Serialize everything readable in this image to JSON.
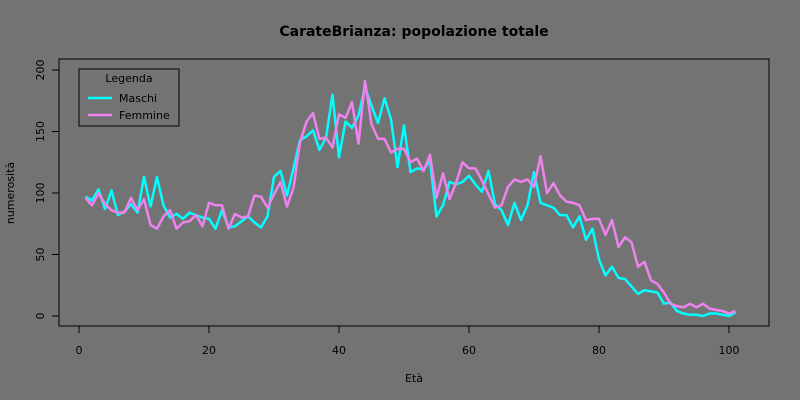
{
  "chart_data": {
    "type": "line",
    "title": "CarateBrianza: popolazione totale",
    "xlabel": "Età",
    "ylabel": "numerosità",
    "xlim": [
      0,
      101
    ],
    "ylim": [
      0,
      200
    ],
    "x_ticks": [
      0,
      20,
      40,
      60,
      80,
      100
    ],
    "y_ticks": [
      0,
      50,
      100,
      150,
      200
    ],
    "grid": false,
    "legend": {
      "title": "Legenda",
      "position": "top-left"
    },
    "x": [
      1,
      2,
      3,
      4,
      5,
      6,
      7,
      8,
      9,
      10,
      11,
      12,
      13,
      14,
      15,
      16,
      17,
      18,
      19,
      20,
      21,
      22,
      23,
      24,
      25,
      26,
      27,
      28,
      29,
      30,
      31,
      32,
      33,
      34,
      35,
      36,
      37,
      38,
      39,
      40,
      41,
      42,
      43,
      44,
      45,
      46,
      47,
      48,
      49,
      50,
      51,
      52,
      53,
      54,
      55,
      56,
      57,
      58,
      59,
      60,
      61,
      62,
      63,
      64,
      65,
      66,
      67,
      68,
      69,
      70,
      71,
      72,
      73,
      74,
      75,
      76,
      77,
      78,
      79,
      80,
      81,
      82,
      83,
      84,
      85,
      86,
      87,
      88,
      89,
      90,
      91,
      92,
      93,
      94,
      95,
      96,
      97,
      98,
      99,
      100,
      101
    ],
    "series": [
      {
        "name": "Maschi",
        "color": "#00ffff",
        "values": [
          97,
          94,
          103,
          87,
          102,
          82,
          85,
          91,
          84,
          113,
          89,
          113,
          90,
          80,
          83,
          79,
          84,
          82,
          80,
          79,
          71,
          86,
          72,
          73,
          77,
          81,
          76,
          72,
          81,
          113,
          118,
          98,
          120,
          143,
          146,
          151,
          135,
          145,
          180,
          129,
          158,
          153,
          163,
          186,
          171,
          157,
          177,
          160,
          121,
          155,
          117,
          120,
          119,
          126,
          81,
          90,
          109,
          107,
          109,
          114,
          107,
          101,
          118,
          91,
          86,
          74,
          92,
          78,
          90,
          117,
          92,
          90,
          88,
          82,
          82,
          72,
          81,
          62,
          71,
          46,
          33,
          40,
          31,
          30,
          24,
          18,
          21,
          20,
          19,
          10,
          11,
          4,
          2,
          1,
          1,
          0,
          2,
          2,
          1,
          0,
          3
        ]
      },
      {
        "name": "Femmine",
        "color": "#ee82ee",
        "values": [
          96,
          90,
          100,
          91,
          86,
          84,
          84,
          96,
          86,
          95,
          74,
          71,
          81,
          86,
          71,
          76,
          77,
          82,
          73,
          92,
          90,
          90,
          71,
          83,
          80,
          81,
          98,
          97,
          88,
          99,
          109,
          89,
          104,
          141,
          158,
          165,
          144,
          145,
          137,
          164,
          161,
          174,
          140,
          191,
          156,
          144,
          144,
          133,
          136,
          136,
          125,
          128,
          118,
          131,
          96,
          116,
          95,
          108,
          125,
          120,
          120,
          110,
          99,
          88,
          90,
          105,
          111,
          109,
          111,
          105,
          130,
          100,
          108,
          98,
          93,
          92,
          90,
          78,
          79,
          79,
          66,
          78,
          56,
          64,
          60,
          40,
          44,
          29,
          26,
          19,
          10,
          8,
          7,
          10,
          7,
          10,
          6,
          5,
          4,
          2,
          4
        ]
      }
    ]
  }
}
